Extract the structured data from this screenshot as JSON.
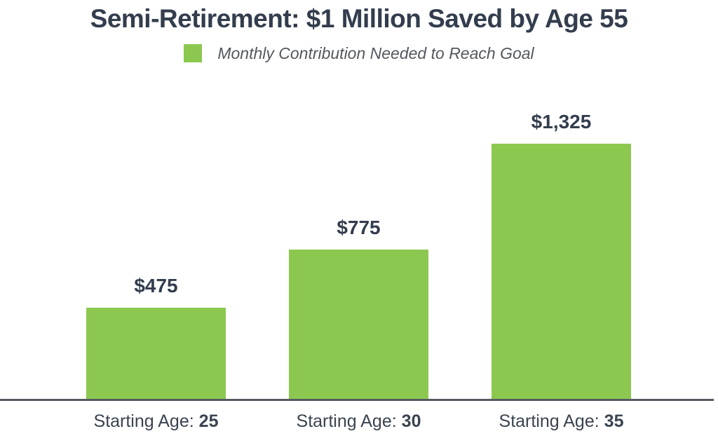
{
  "chart": {
    "title": "Semi-Retirement: $1 Million Saved by Age 55",
    "legend": {
      "label": "Monthly Contribution Needed to Reach Goal",
      "swatch_color": "#8cc850"
    }
  },
  "chart_data": {
    "type": "bar",
    "title": "Semi-Retirement: $1 Million Saved by Age 55",
    "legend": [
      "Monthly Contribution Needed to Reach Goal"
    ],
    "legend_position": "top",
    "categories": [
      "Starting Age: 25",
      "Starting Age: 30",
      "Starting Age: 35"
    ],
    "category_prefix": "Starting Age:",
    "category_values": [
      "25",
      "30",
      "35"
    ],
    "values": [
      475,
      775,
      1325
    ],
    "value_labels": [
      "$475",
      "$775",
      "$1,325"
    ],
    "xlabel": "",
    "ylabel": "",
    "ylim": [
      0,
      1325
    ],
    "grid": false,
    "bar_color": "#8cc850",
    "axis_line_color": "#555b61",
    "text_color": "#333d4d"
  }
}
